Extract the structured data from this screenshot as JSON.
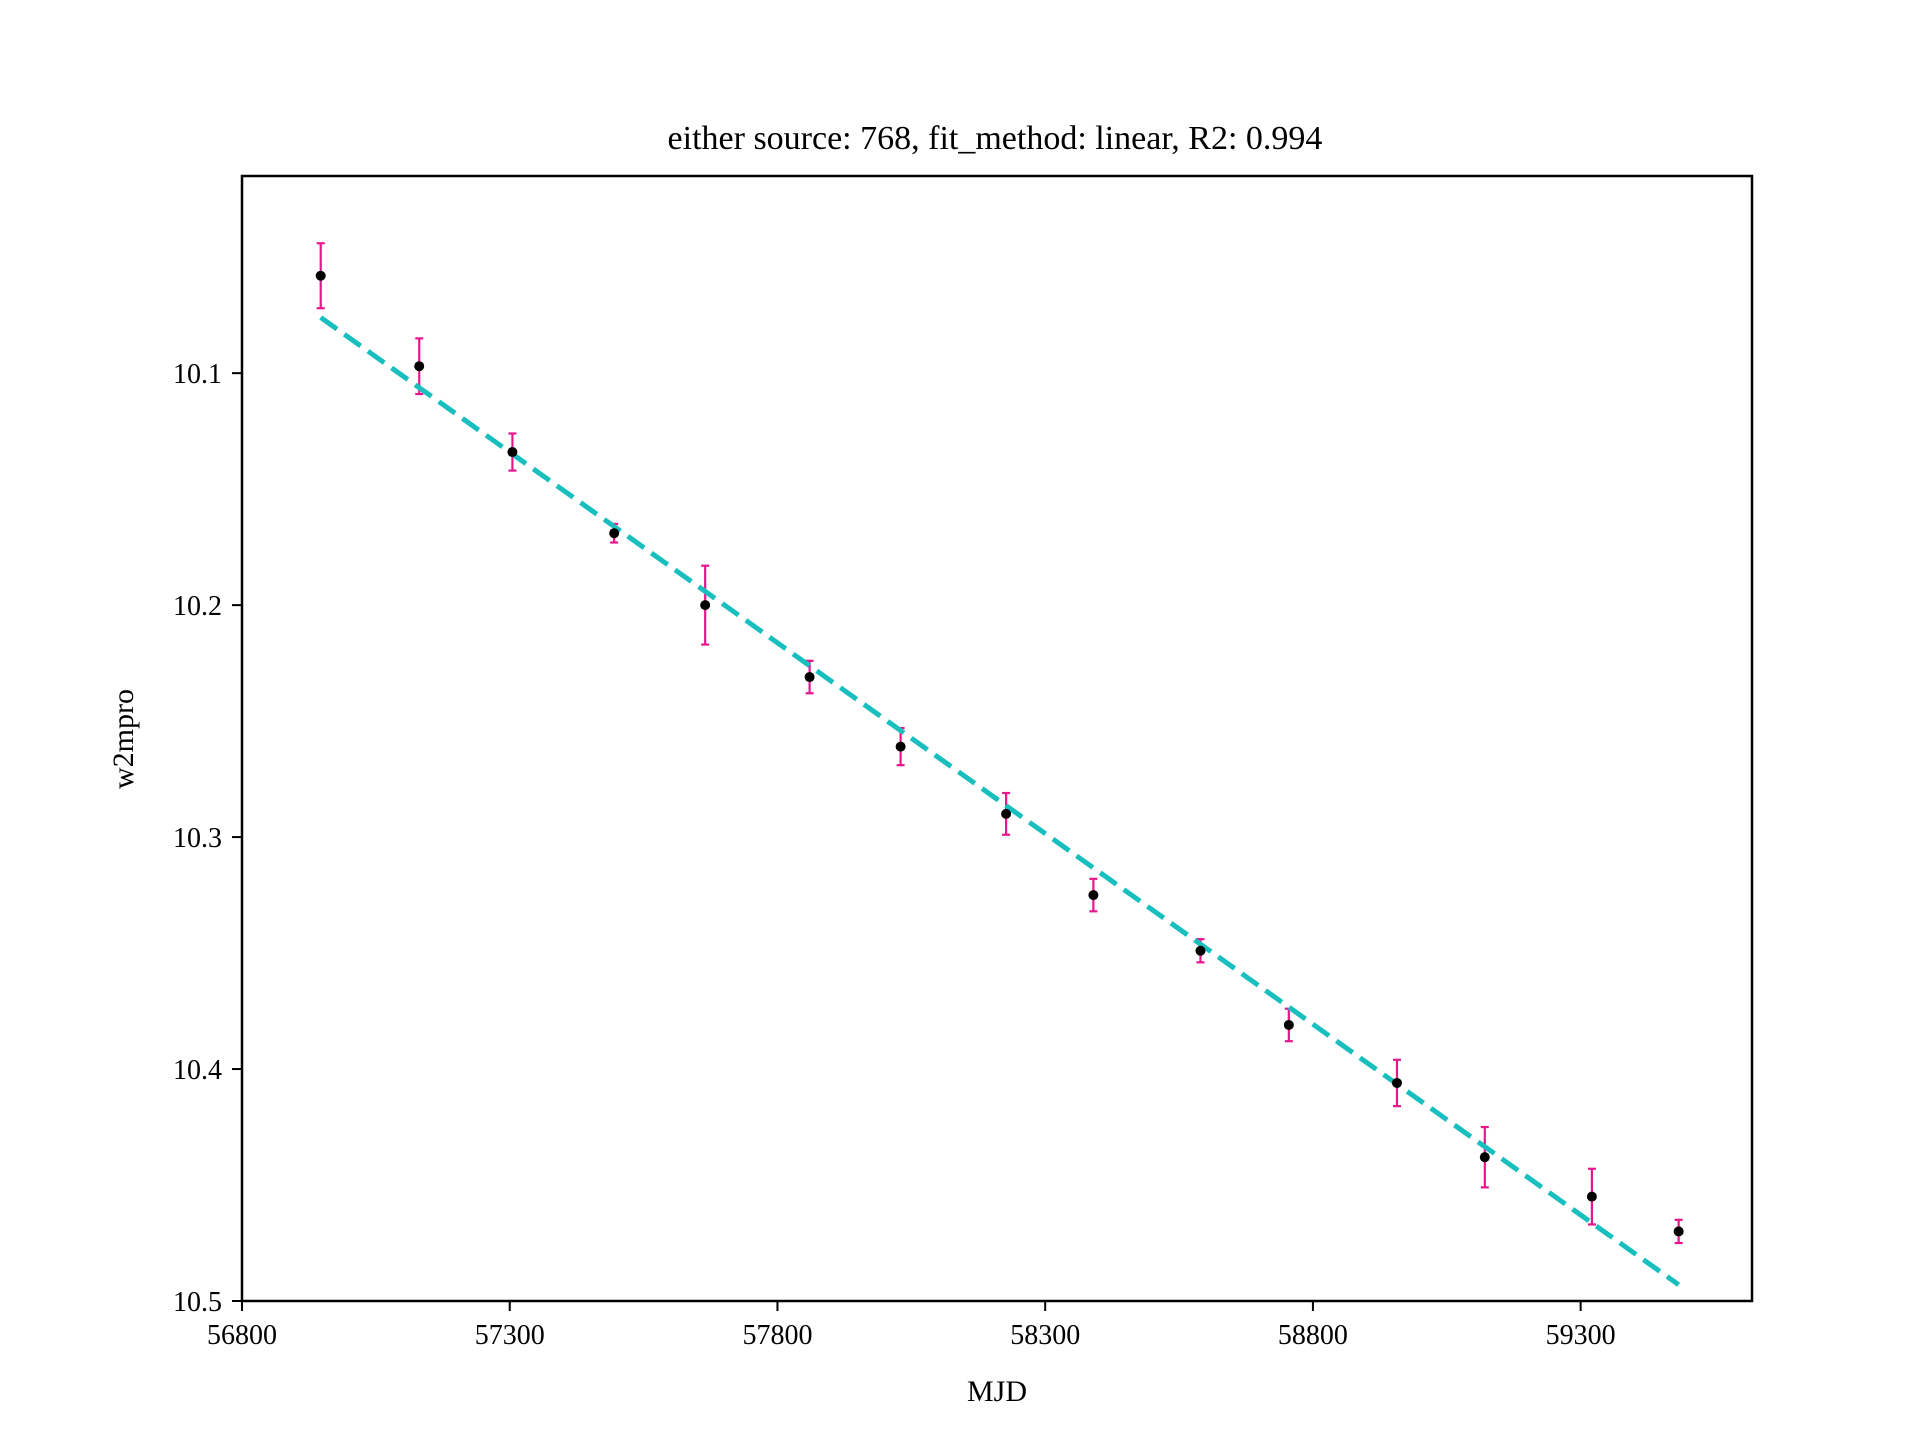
{
  "chart_data": {
    "type": "scatter",
    "title": "either source: 768,  fit_method: linear, R2: 0.994",
    "xlabel": "MJD",
    "ylabel": "w2mpro",
    "xlim": [
      56800,
      59620
    ],
    "ylim": [
      10.5,
      10.015
    ],
    "y_inverted": true,
    "grid": false,
    "xticks": [
      56800,
      57300,
      57800,
      58300,
      58800,
      59300
    ],
    "xtick_labels": [
      "56800",
      "57300",
      "57800",
      "58300",
      "58800",
      "59300"
    ],
    "yticks": [
      10.1,
      10.2,
      10.3,
      10.4,
      10.5
    ],
    "ytick_labels": [
      "10.1",
      "10.2",
      "10.3",
      "10.4",
      "10.5"
    ],
    "series": [
      {
        "kind": "errorbar",
        "marker_color": "#000000",
        "error_color": "#e8168c",
        "points": [
          {
            "x": 56947,
            "y": 10.058,
            "err": 0.014
          },
          {
            "x": 57131,
            "y": 10.097,
            "err": 0.012
          },
          {
            "x": 57305,
            "y": 10.134,
            "err": 0.008
          },
          {
            "x": 57495,
            "y": 10.169,
            "err": 0.004
          },
          {
            "x": 57665,
            "y": 10.2,
            "err": 0.017
          },
          {
            "x": 57860,
            "y": 10.231,
            "err": 0.007
          },
          {
            "x": 58030,
            "y": 10.261,
            "err": 0.008
          },
          {
            "x": 58227,
            "y": 10.29,
            "err": 0.009
          },
          {
            "x": 58390,
            "y": 10.325,
            "err": 0.007
          },
          {
            "x": 58590,
            "y": 10.349,
            "err": 0.005
          },
          {
            "x": 58755,
            "y": 10.381,
            "err": 0.007
          },
          {
            "x": 58957,
            "y": 10.406,
            "err": 0.01
          },
          {
            "x": 59121,
            "y": 10.438,
            "err": 0.013
          },
          {
            "x": 59321,
            "y": 10.455,
            "err": 0.012
          },
          {
            "x": 59483,
            "y": 10.47,
            "err": 0.005
          }
        ]
      },
      {
        "kind": "fit_line",
        "color": "#19bfbf",
        "dashed": true,
        "x": [
          56947,
          59483
        ],
        "y": [
          10.076,
          10.493
        ]
      }
    ]
  }
}
